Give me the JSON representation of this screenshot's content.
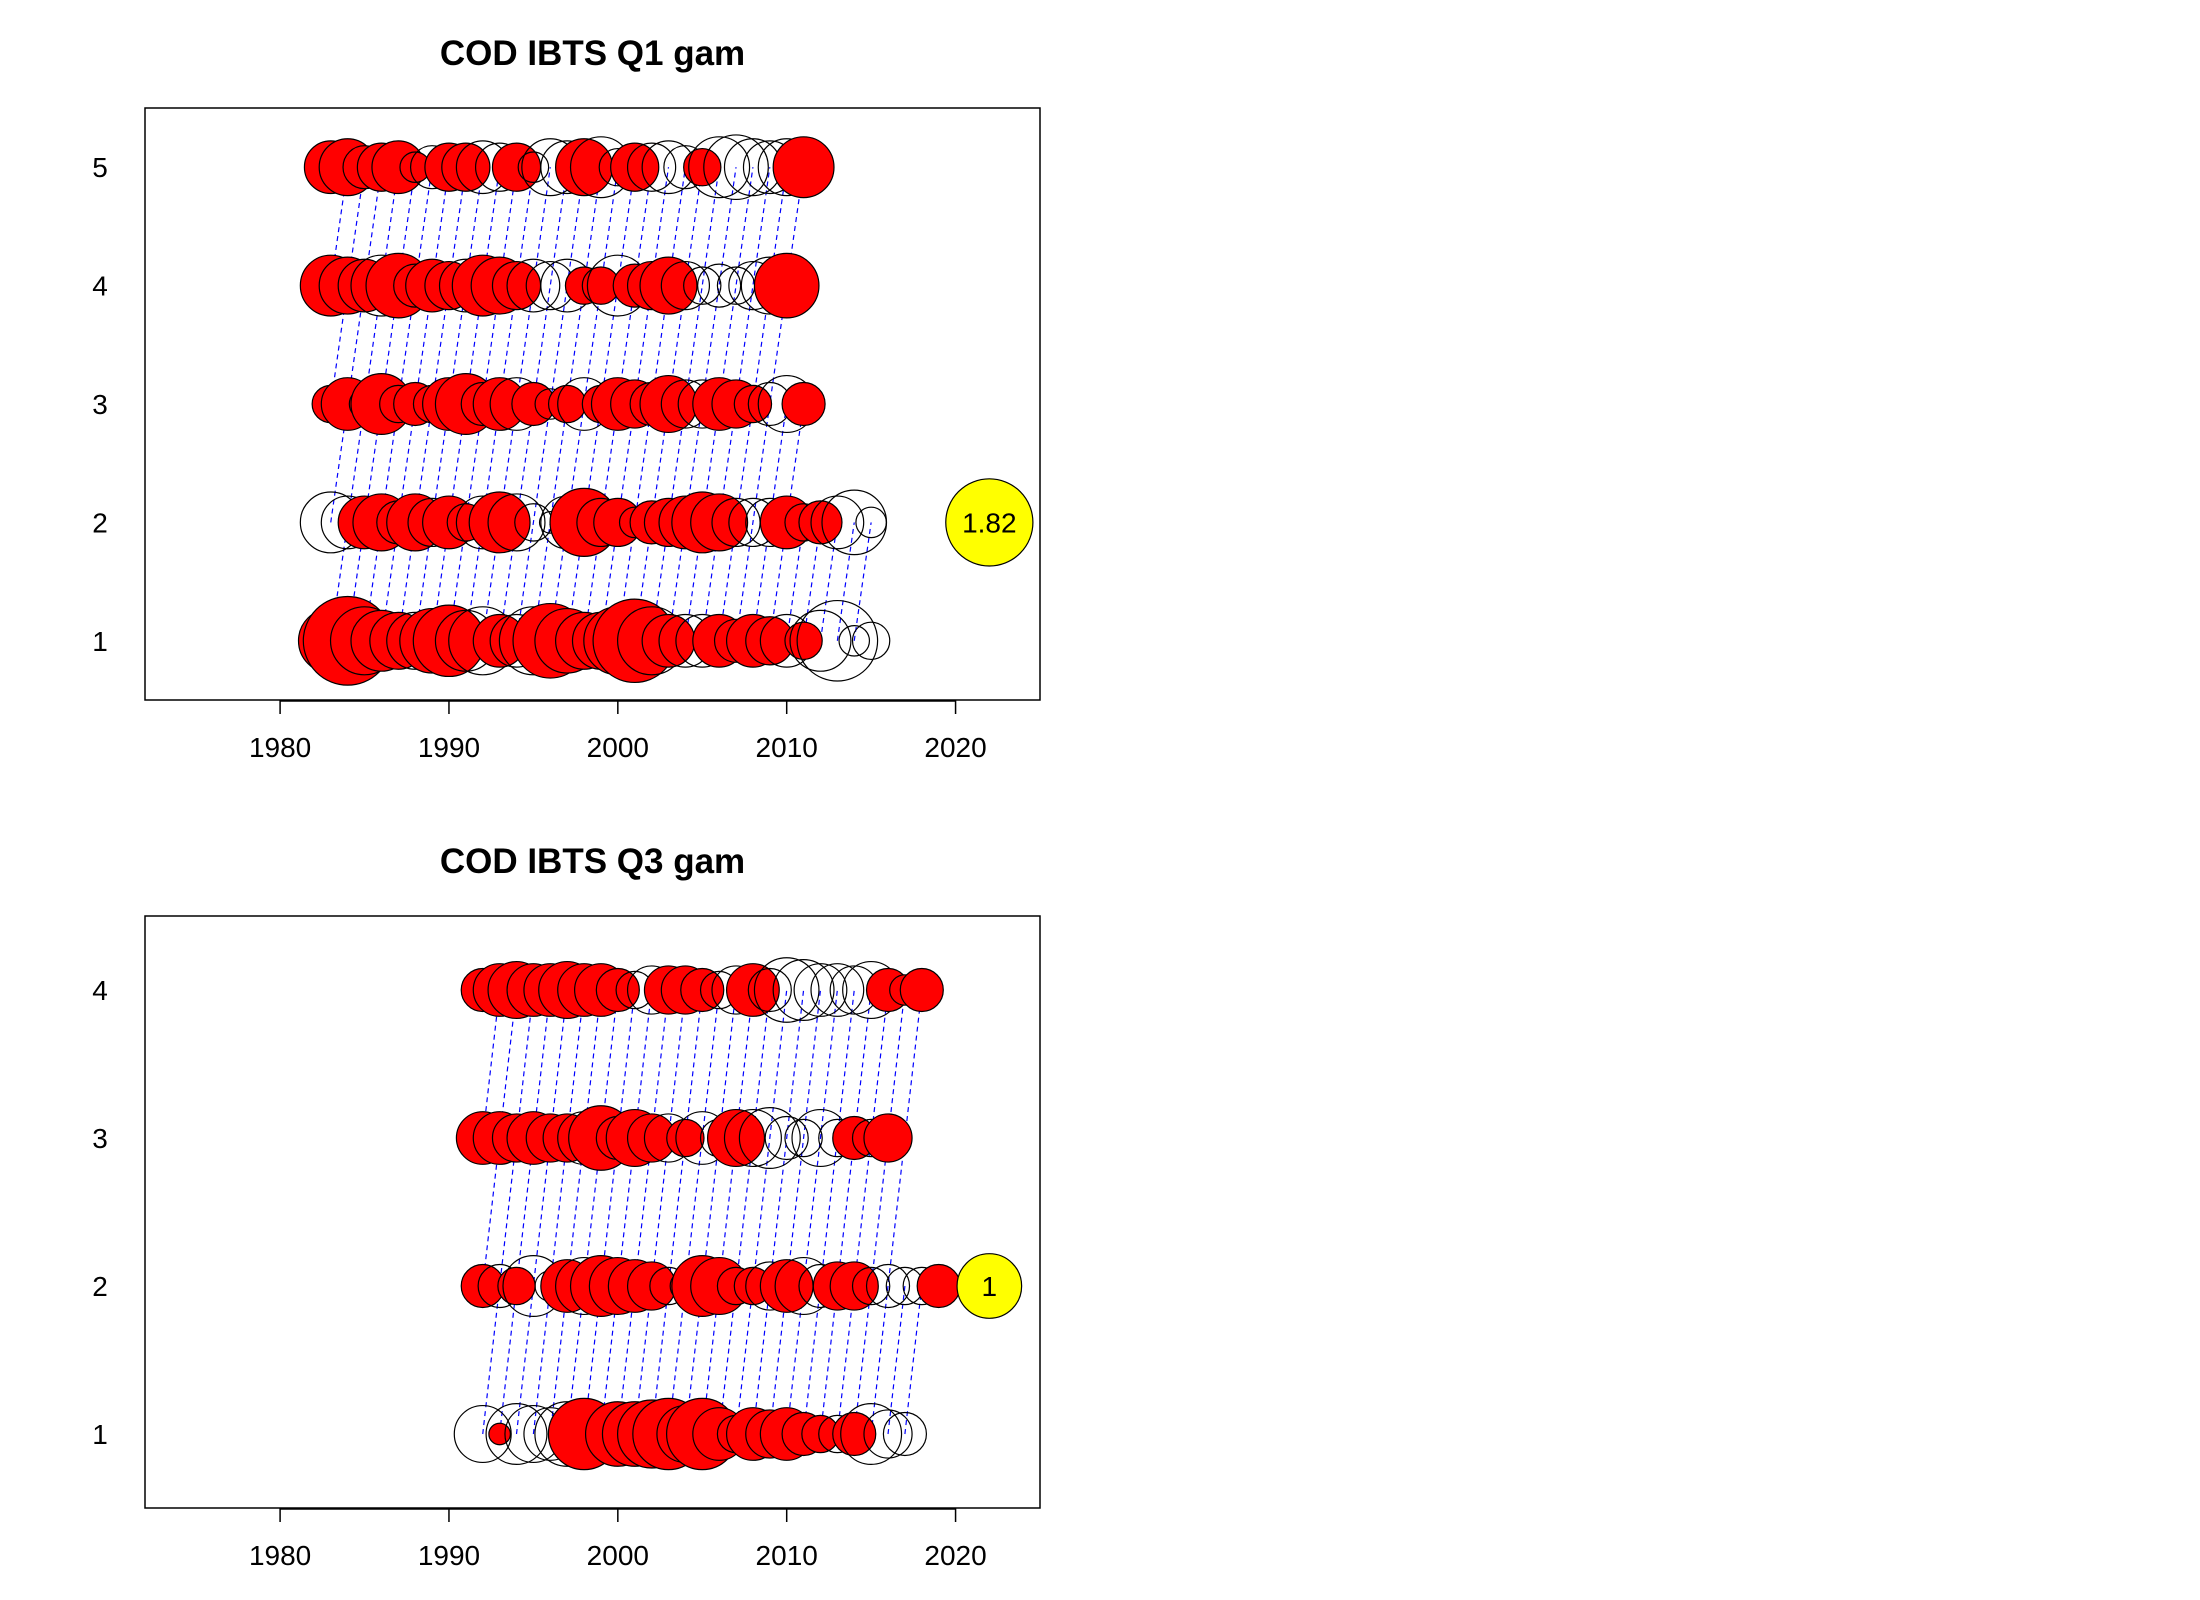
{
  "chart_data": [
    {
      "type": "scatter",
      "title": "COD IBTS Q1 gam",
      "xlabel": "",
      "ylabel": "",
      "xlim": [
        1972,
        2025
      ],
      "ylim": [
        0.5,
        5.5
      ],
      "xticks": [
        1980,
        1990,
        2000,
        2010,
        2020
      ],
      "yticks": [
        1,
        2,
        3,
        4,
        5
      ],
      "grid": false,
      "negative_fill": "#ff0000",
      "positive_fill": "none",
      "cohort_line_color": "#0000ff",
      "reference_fill": "#ffff00",
      "reference": {
        "x": 2022,
        "y": 2,
        "label": "1.82",
        "value": 1.82
      },
      "year_start": 1983,
      "residuals": {
        "1": [
          -0.9,
          -1.7,
          1.0,
          -0.8,
          -0.7,
          0.7,
          -0.9,
          -1.1,
          0.8,
          1.0,
          -0.6,
          0.6,
          1.0,
          -1.2,
          -0.9,
          -0.7,
          -0.7,
          -1.0,
          -1.5,
          1.0,
          -0.6,
          0.6,
          0.6,
          -0.6,
          -0.4,
          -0.6,
          -0.5,
          0.6,
          -0.3,
          0.8,
          1.4,
          0.2,
          0.3
        ],
        "2": [
          0.8,
          0.6,
          -0.6,
          -0.7,
          0.4,
          -0.7,
          0.5,
          -0.6,
          -0.3,
          0.6,
          -0.8,
          0.7,
          0.3,
          0.1,
          0.6,
          -1.0,
          -0.5,
          -0.5,
          0.2,
          -0.4,
          -0.5,
          -0.6,
          -0.8,
          -0.7,
          0.5,
          0.5,
          0.5,
          -0.6,
          0.3,
          -0.4,
          0.6,
          0.9,
          0.2
        ],
        "3": [
          -0.3,
          -0.6,
          -0.2,
          -0.8,
          -0.3,
          -0.4,
          -0.3,
          -0.6,
          -0.8,
          -0.4,
          -0.6,
          0.6,
          -0.4,
          0.2,
          -0.3,
          0.6,
          -0.3,
          -0.6,
          -0.5,
          -0.4,
          -0.7,
          0.5,
          0.5,
          -0.6,
          -0.5,
          -0.3,
          0.4,
          0.7,
          -0.4
        ],
        "4": [
          -0.8,
          -0.7,
          -0.6,
          0.8,
          -0.9,
          0.4,
          -0.6,
          -0.5,
          0.6,
          -0.8,
          -0.7,
          -0.5,
          0.6,
          0.5,
          0.6,
          -0.3,
          -0.3,
          0.8,
          -0.4,
          -0.5,
          -0.7,
          0.5,
          0.3,
          0.4,
          0.3,
          0.5,
          0.7,
          -0.9
        ],
        "5": [
          -0.6,
          -0.7,
          -0.4,
          -0.5,
          -0.6,
          -0.2,
          0.4,
          -0.5,
          -0.5,
          0.6,
          0.5,
          -0.5,
          0.2,
          0.7,
          0.6,
          -0.7,
          0.8,
          0.3,
          -0.5,
          0.5,
          0.6,
          0.4,
          -0.3,
          0.8,
          0.9,
          0.7,
          0.6,
          0.7,
          -0.8
        ]
      }
    },
    {
      "type": "scatter",
      "title": "COD IBTS Q3 gam",
      "xlabel": "",
      "ylabel": "",
      "xlim": [
        1972,
        2025
      ],
      "ylim": [
        0.5,
        4.5
      ],
      "xticks": [
        1980,
        1990,
        2000,
        2010,
        2020
      ],
      "yticks": [
        1,
        2,
        3,
        4
      ],
      "grid": false,
      "negative_fill": "#ff0000",
      "positive_fill": "none",
      "cohort_line_color": "#0000ff",
      "reference_fill": "#ffff00",
      "reference": {
        "x": 2022,
        "y": 2,
        "label": "1",
        "value": 1.0
      },
      "year_start": 1992,
      "residuals": {
        "1": [
          0.7,
          -0.1,
          0.8,
          0.7,
          0.6,
          0.9,
          -1.1,
          0.2,
          -0.9,
          -0.9,
          -1.0,
          -1.1,
          -0.7,
          -1.1,
          -0.6,
          0.3,
          -0.6,
          -0.5,
          -0.6,
          -0.4,
          -0.3,
          0.3,
          -0.4,
          0.8,
          0.5,
          0.4
        ],
        "2": [
          -0.4,
          0.4,
          -0.3,
          0.8,
          0.2,
          -0.6,
          0.7,
          -0.8,
          -0.7,
          -0.6,
          -0.5,
          0.3,
          -0.2,
          -0.8,
          -0.7,
          -0.3,
          -0.3,
          0.5,
          -0.6,
          0.7,
          0.4,
          -0.5,
          -0.5,
          0.3,
          0.4,
          0.3,
          0.3,
          -0.4
        ],
        "3": [
          -0.6,
          -0.6,
          -0.5,
          -0.6,
          -0.5,
          -0.5,
          0.6,
          -0.9,
          -0.4,
          -0.7,
          -0.5,
          0.5,
          -0.3,
          0.6,
          0.3,
          -0.7,
          0.7,
          0.8,
          0.4,
          0.3,
          0.7,
          0.3,
          -0.4,
          0.3,
          -0.5
        ],
        "4": [
          -0.4,
          -0.6,
          -0.7,
          -0.6,
          -0.6,
          -0.7,
          -0.6,
          -0.6,
          -0.4,
          0.3,
          0.5,
          -0.5,
          -0.5,
          -0.4,
          0.3,
          0.5,
          -0.6,
          0.4,
          0.9,
          0.8,
          0.6,
          0.6,
          0.5,
          0.7,
          -0.4,
          -0.2,
          -0.4
        ]
      }
    }
  ]
}
